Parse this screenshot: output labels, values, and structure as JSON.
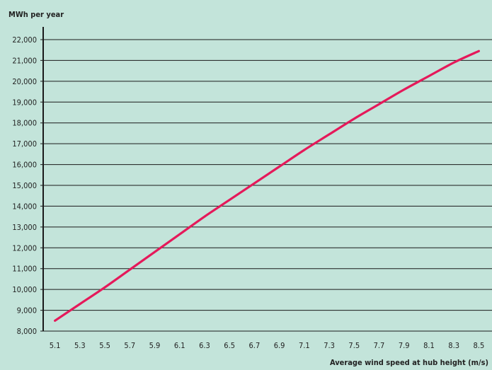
{
  "chart_data": {
    "type": "line",
    "title": "",
    "ylabel": "MWh per year",
    "xlabel": "Average wind speed at hub height (m/s)",
    "xlim": [
      5.0,
      8.6
    ],
    "ylim": [
      8000,
      22000
    ],
    "x_ticks": [
      "5.1",
      "5.3",
      "5.5",
      "5.7",
      "5.9",
      "6.1",
      "6.3",
      "6.5",
      "6.7",
      "6.9",
      "7.1",
      "7.3",
      "7.5",
      "7.7",
      "7.9",
      "8.1",
      "8.3",
      "8.5"
    ],
    "y_ticks": [
      "8,000",
      "9,000",
      "10,000",
      "11,000",
      "12,000",
      "13,000",
      "14,000",
      "15,000",
      "16,000",
      "17,000",
      "18,000",
      "19,000",
      "20,000",
      "21,000",
      "22,000"
    ],
    "grid": "horizontal",
    "colors": {
      "background": "#c3e4da",
      "line": "#e5195a",
      "grid": "#1a1a1a"
    },
    "series": [
      {
        "x": [
          5.1,
          5.3,
          5.5,
          5.7,
          5.9,
          6.1,
          6.3,
          6.5,
          6.7,
          6.9,
          7.1,
          7.3,
          7.5,
          7.7,
          7.9,
          8.1,
          8.3,
          8.5
        ],
        "values": [
          8500,
          9300,
          10100,
          10950,
          11800,
          12650,
          13500,
          14300,
          15100,
          15900,
          16700,
          17450,
          18200,
          18900,
          19600,
          20250,
          20900,
          21450
        ]
      }
    ]
  }
}
